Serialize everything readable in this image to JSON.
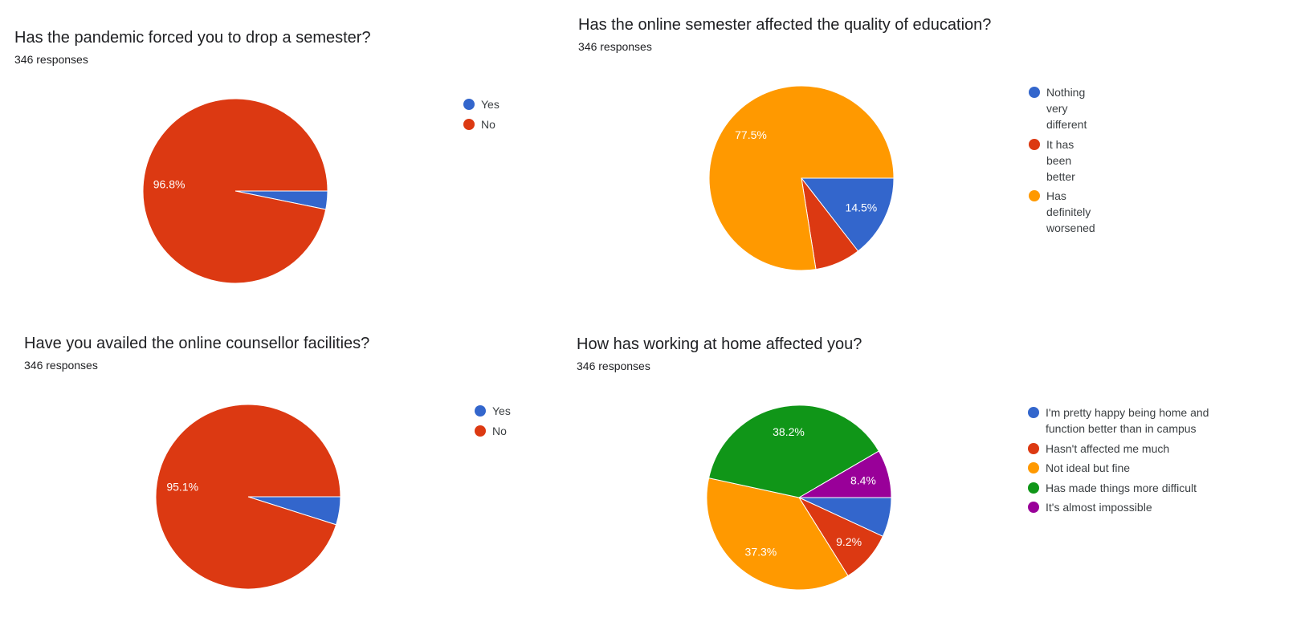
{
  "colors": {
    "blue": "#3366cc",
    "red": "#dc3912",
    "orange": "#ff9900",
    "green": "#109618",
    "purple": "#990099"
  },
  "charts": [
    {
      "title": "Has the pandemic forced you to drop a semester?",
      "responses": "346 responses",
      "chart_data": {
        "type": "pie",
        "slices": [
          {
            "label": "Yes",
            "value": 3.2,
            "color": "#3366cc",
            "data_label": ""
          },
          {
            "label": "No",
            "value": 96.8,
            "color": "#dc3912",
            "data_label": "96.8%"
          }
        ]
      }
    },
    {
      "title": "Has the online semester affected the quality of education?",
      "responses": "346 responses",
      "chart_data": {
        "type": "pie",
        "slices": [
          {
            "label": "Nothing very different",
            "value": 14.5,
            "color": "#3366cc",
            "data_label": "14.5%"
          },
          {
            "label": "It has been better",
            "value": 8.0,
            "color": "#dc3912",
            "data_label": ""
          },
          {
            "label": "Has definitely worsened",
            "value": 77.5,
            "color": "#ff9900",
            "data_label": "77.5%"
          }
        ]
      }
    },
    {
      "title": "Have you availed the online counsellor facilities?",
      "responses": "346 responses",
      "chart_data": {
        "type": "pie",
        "slices": [
          {
            "label": "Yes",
            "value": 4.9,
            "color": "#3366cc",
            "data_label": ""
          },
          {
            "label": "No",
            "value": 95.1,
            "color": "#dc3912",
            "data_label": "95.1%"
          }
        ]
      }
    },
    {
      "title": "How has working at home affected you?",
      "responses": "346 responses",
      "chart_data": {
        "type": "pie",
        "slices": [
          {
            "label": "I'm pretty happy being home and function better than in campus",
            "value": 6.9,
            "color": "#3366cc",
            "data_label": ""
          },
          {
            "label": "Hasn't affected me much",
            "value": 9.2,
            "color": "#dc3912",
            "data_label": "9.2%"
          },
          {
            "label": "Not ideal but fine",
            "value": 37.3,
            "color": "#ff9900",
            "data_label": "37.3%"
          },
          {
            "label": "Has made things more difficult",
            "value": 38.2,
            "color": "#109618",
            "data_label": "38.2%"
          },
          {
            "label": "It's almost impossible",
            "value": 8.4,
            "color": "#990099",
            "data_label": "8.4%"
          }
        ]
      }
    }
  ]
}
